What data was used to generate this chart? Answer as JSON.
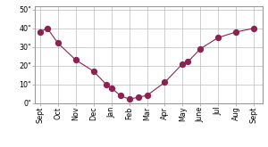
{
  "months": [
    "Sept",
    "Oct",
    "Nov",
    "Dec",
    "Jan",
    "Feb",
    "Mar",
    "Apr",
    "May",
    "June",
    "Jul",
    "Aug",
    "Sept"
  ],
  "data_points": [
    [
      0,
      38
    ],
    [
      0.4,
      40
    ],
    [
      1,
      32
    ],
    [
      2,
      23
    ],
    [
      3,
      17
    ],
    [
      3.7,
      10
    ],
    [
      4,
      8
    ],
    [
      4.5,
      4
    ],
    [
      5,
      2
    ],
    [
      5.5,
      3
    ],
    [
      6,
      4
    ],
    [
      7,
      11
    ],
    [
      8,
      21
    ],
    [
      8.3,
      22
    ],
    [
      9,
      29
    ],
    [
      10,
      35
    ],
    [
      11,
      38
    ],
    [
      12,
      40
    ]
  ],
  "yticks": [
    0,
    10,
    20,
    30,
    40,
    50
  ],
  "ylim": [
    0,
    52
  ],
  "xlim": [
    -0.3,
    12.5
  ],
  "line_color": "#8B2252",
  "marker_color": "#8B2252",
  "background_color": "#ffffff",
  "grid_color": "#bbbbbb",
  "border_color": "#999999",
  "tick_fontsize": 5.8,
  "marker_size": 18
}
